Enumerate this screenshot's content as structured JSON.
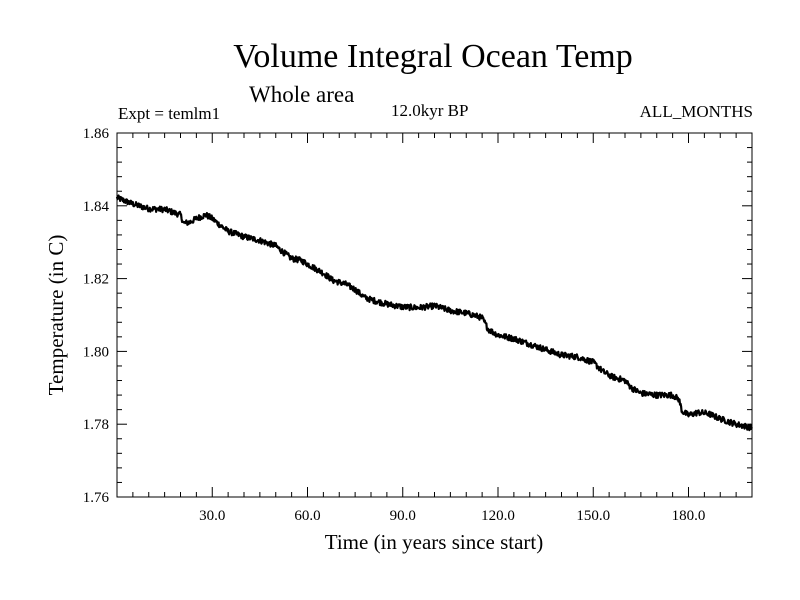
{
  "header": {
    "title": "Volume Integral Ocean Temp",
    "subtitle": "Whole area",
    "experiment": "Expt = temlm1",
    "period": "12.0kyr BP",
    "months": "ALL_MONTHS"
  },
  "chart_data": {
    "type": "line",
    "title": "Volume Integral Ocean Temp",
    "xlabel": "Time (in years since start)",
    "ylabel": "Temperature (in C)",
    "xlim": [
      0,
      200
    ],
    "ylim": [
      1.76,
      1.86
    ],
    "x_ticks": [
      30,
      60,
      90,
      120,
      150,
      180
    ],
    "x_tick_labels": [
      "30.0",
      "60.0",
      "90.0",
      "120.0",
      "150.0",
      "180.0"
    ],
    "y_ticks": [
      1.76,
      1.78,
      1.8,
      1.82,
      1.84,
      1.86
    ],
    "y_tick_labels": [
      "1.76",
      "1.78",
      "1.80",
      "1.82",
      "1.84",
      "1.86"
    ],
    "grid": false,
    "series": [
      {
        "name": "Volume Integral Ocean Temp",
        "color": "#000000",
        "x": [
          0,
          5,
          10,
          15,
          20,
          21,
          23,
          25,
          28,
          30,
          32,
          35,
          40,
          45,
          50,
          52,
          55,
          58,
          62,
          65,
          68,
          72,
          75,
          78,
          80,
          85,
          90,
          95,
          100,
          105,
          110,
          113,
          115,
          117,
          120,
          125,
          130,
          135,
          140,
          145,
          150,
          153,
          156,
          160,
          162,
          165,
          170,
          175,
          177,
          178,
          180,
          183,
          186,
          190,
          195,
          200
        ],
        "y": [
          1.8422,
          1.8405,
          1.8392,
          1.839,
          1.8375,
          1.8352,
          1.8355,
          1.8365,
          1.8375,
          1.8365,
          1.835,
          1.833,
          1.8315,
          1.8305,
          1.829,
          1.8275,
          1.8255,
          1.825,
          1.823,
          1.8215,
          1.8195,
          1.8185,
          1.817,
          1.8148,
          1.8142,
          1.813,
          1.8122,
          1.812,
          1.8125,
          1.8112,
          1.8105,
          1.8098,
          1.8092,
          1.806,
          1.8045,
          1.8035,
          1.802,
          1.8005,
          1.799,
          1.7985,
          1.797,
          1.7945,
          1.793,
          1.792,
          1.79,
          1.7885,
          1.788,
          1.788,
          1.7868,
          1.7835,
          1.7825,
          1.7832,
          1.783,
          1.7815,
          1.78,
          1.779
        ]
      }
    ]
  }
}
